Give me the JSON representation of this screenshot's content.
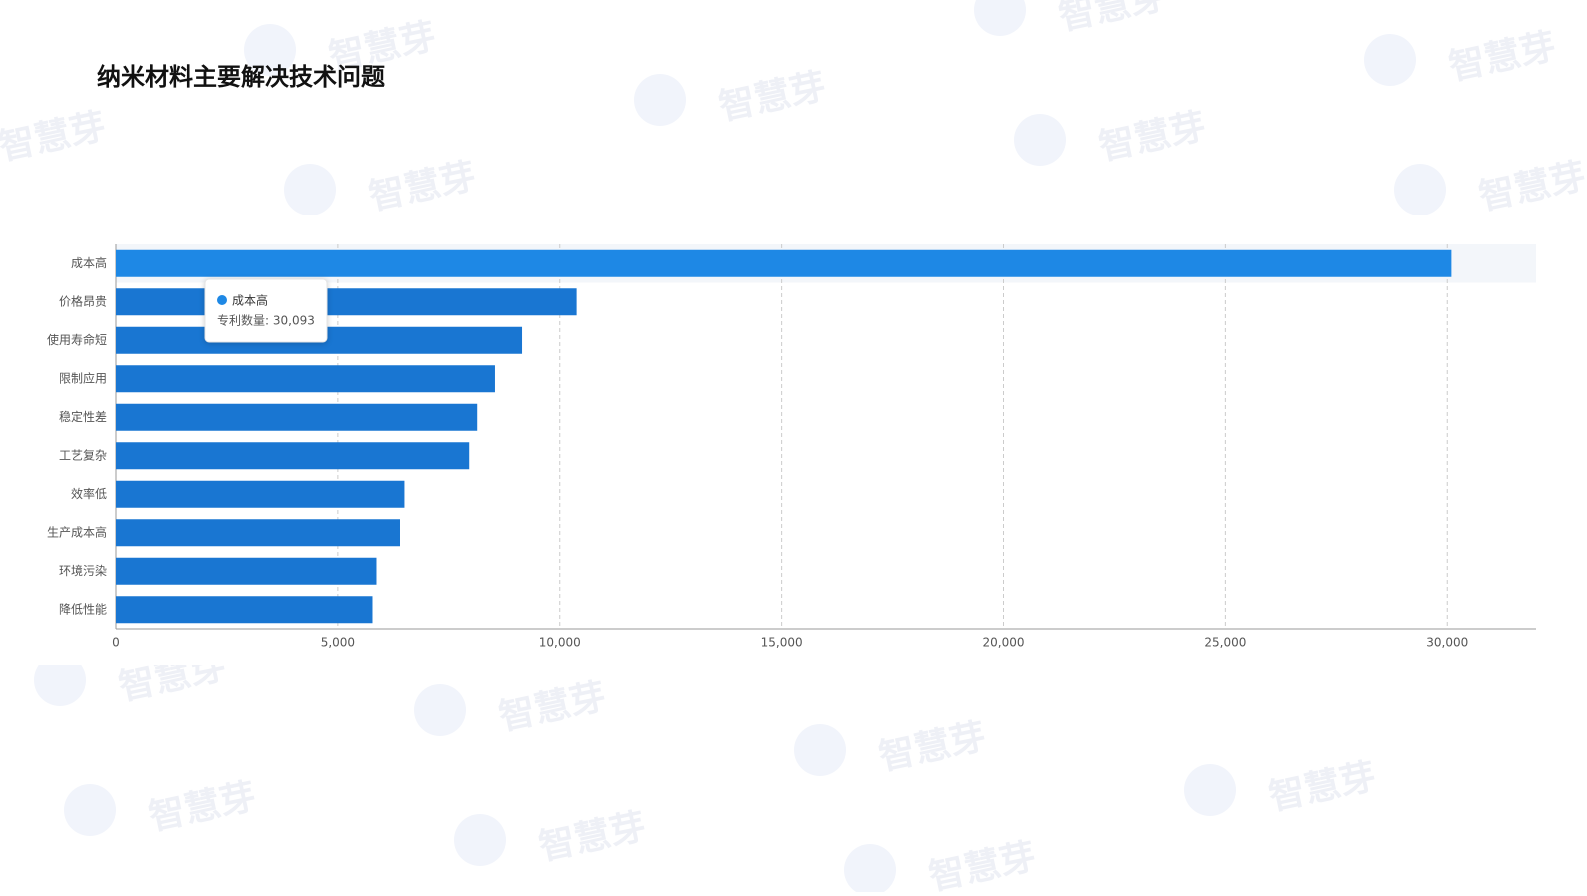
{
  "chart_data": {
    "type": "bar",
    "orientation": "horizontal",
    "title": "纳米材料主要解决技术问题",
    "watermark": "智慧芽",
    "categories": [
      "成本高",
      "价格昂贵",
      "使用寿命短",
      "限制应用",
      "稳定性差",
      "工艺复杂",
      "效率低",
      "生产成本高",
      "环境污染",
      "降低性能"
    ],
    "values": [
      30093,
      10380,
      9150,
      8540,
      8140,
      7960,
      6500,
      6400,
      5870,
      5780
    ],
    "color": "#1976d2",
    "emphasis_color": "#1e88e5",
    "xlim": [
      0,
      32000
    ],
    "xticks": [
      0,
      {
        "value": 5000,
        "label": "5,000"
      },
      {
        "value": 10000,
        "label": "10,000"
      },
      {
        "value": 15000,
        "label": "15,000"
      },
      {
        "value": 20000,
        "label": "20,000"
      },
      {
        "value": 25000,
        "label": "25,000"
      },
      {
        "value": 30000,
        "label": "30,000"
      }
    ],
    "grid": true,
    "tooltip": {
      "text": "专利数量: 30,093"
    }
  }
}
